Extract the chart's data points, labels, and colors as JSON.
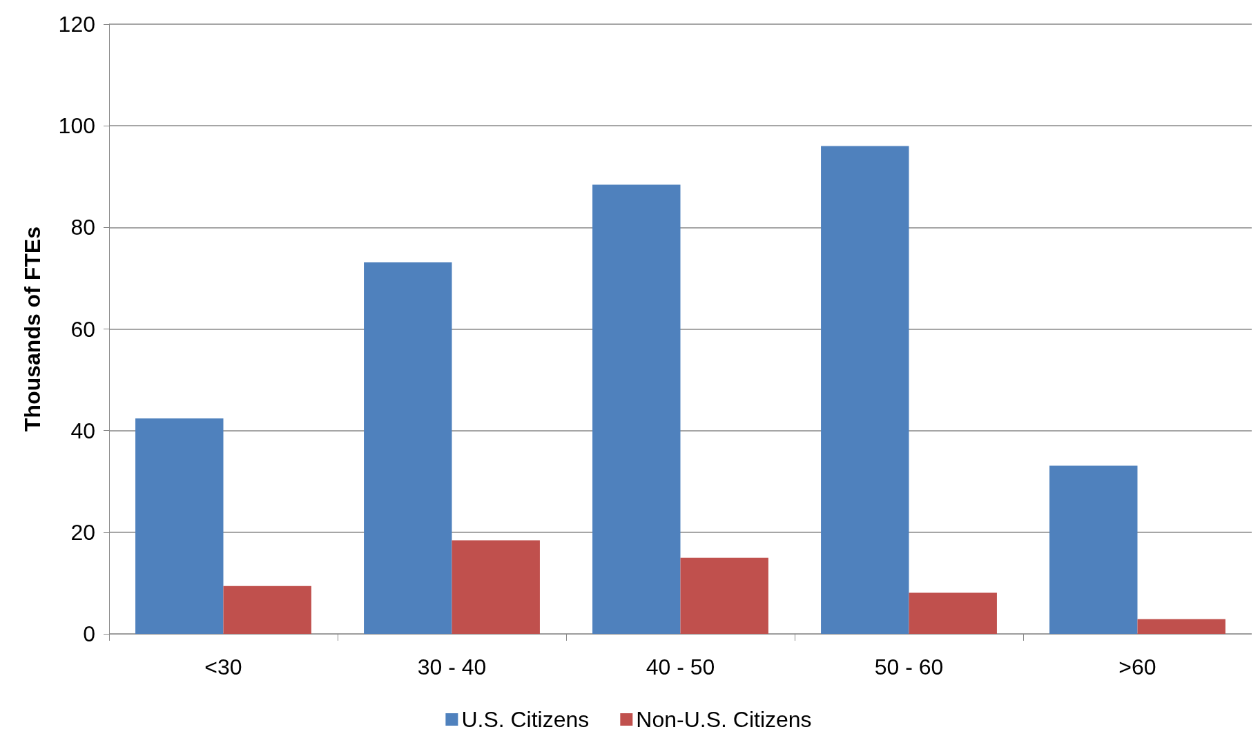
{
  "chart_data": {
    "type": "bar",
    "ylabel": "Thousands of FTEs",
    "categories": [
      "<30",
      "30 - 40",
      "40 - 50",
      "50 - 60",
      ">60"
    ],
    "series": [
      {
        "name": "U.S. Citizens",
        "color": "#4f81bd",
        "values": [
          42.4,
          73.1,
          88.4,
          96.0,
          33.1
        ]
      },
      {
        "name": "Non-U.S. Citizens",
        "color": "#c0504d",
        "values": [
          9.4,
          18.4,
          15.0,
          8.1,
          2.9
        ]
      }
    ],
    "ylim": [
      0,
      120
    ],
    "yticks": [
      0,
      20,
      40,
      60,
      80,
      100,
      120
    ],
    "grid": "y",
    "legend": "bottom"
  }
}
